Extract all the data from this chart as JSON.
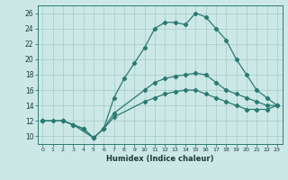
{
  "xlabel": "Humidex (Indice chaleur)",
  "xlim": [
    -0.5,
    23.5
  ],
  "ylim": [
    9,
    27
  ],
  "yticks": [
    10,
    12,
    14,
    16,
    18,
    20,
    22,
    24,
    26
  ],
  "xticks": [
    0,
    1,
    2,
    3,
    4,
    5,
    6,
    7,
    8,
    9,
    10,
    11,
    12,
    13,
    14,
    15,
    16,
    17,
    18,
    19,
    20,
    21,
    22,
    23
  ],
  "background_color": "#cce8e6",
  "grid_color": "#aacfcc",
  "line_color": "#2a7a72",
  "series": [
    {
      "x": [
        0,
        1,
        2,
        3,
        4,
        5,
        6,
        7,
        8,
        9,
        10,
        11,
        12,
        13,
        14,
        15,
        16,
        17,
        18,
        19,
        20,
        21,
        22,
        23
      ],
      "y": [
        12,
        12,
        12,
        11.5,
        11,
        9.8,
        11,
        15,
        17.5,
        19.5,
        21.5,
        24,
        24.8,
        24.8,
        24.5,
        26,
        25.5,
        24,
        22.5,
        20,
        18,
        16,
        15,
        14
      ]
    },
    {
      "x": [
        0,
        2,
        3,
        4,
        5,
        6,
        7,
        10,
        11,
        12,
        13,
        14,
        15,
        16,
        17,
        18,
        19,
        20,
        21,
        22,
        23
      ],
      "y": [
        12,
        12,
        11.5,
        11,
        9.8,
        11,
        13,
        16,
        17,
        17.5,
        17.8,
        18,
        18.2,
        18,
        17,
        16,
        15.5,
        15,
        14.5,
        14,
        14
      ]
    },
    {
      "x": [
        0,
        2,
        3,
        5,
        6,
        7,
        10,
        11,
        12,
        13,
        14,
        15,
        16,
        17,
        18,
        19,
        20,
        21,
        22,
        23
      ],
      "y": [
        12,
        12,
        11.5,
        9.8,
        11,
        12.5,
        14.5,
        15,
        15.5,
        15.8,
        16,
        16,
        15.5,
        15,
        14.5,
        14,
        13.5,
        13.5,
        13.5,
        14
      ]
    }
  ]
}
